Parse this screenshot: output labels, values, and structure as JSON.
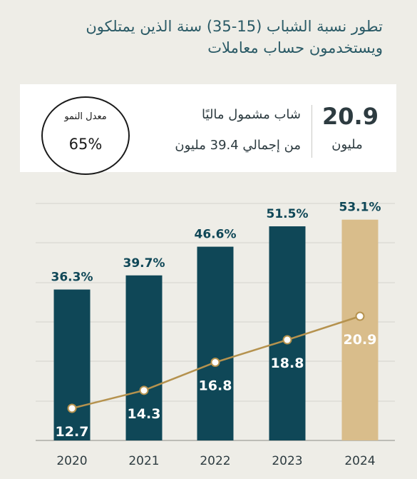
{
  "title": {
    "line1": "تطور نسبة الشباب (15-35) سنة الذين يمتلكون",
    "line2": "ويستخدمون حساب معاملات"
  },
  "stat_card": {
    "value": "20.9",
    "unit": "مليون",
    "line1": "شاب مشمول ماليًا",
    "line2": "من إجمالي 39.4 مليون"
  },
  "growth": {
    "label": "معدل النمو",
    "value": "65%"
  },
  "colors": {
    "bar": "#0f4757",
    "bar_highlight": "#d9bd8b",
    "line": "#b5924e",
    "pct_text": "#0f4757",
    "grid": "#d4d4ce"
  },
  "chart_data": {
    "type": "bar",
    "categories": [
      "2020",
      "2021",
      "2022",
      "2023",
      "2024"
    ],
    "series": [
      {
        "values": [
          36.3,
          39.7,
          46.6,
          51.5,
          53.1
        ],
        "labels": [
          "36.3%",
          "39.7%",
          "46.6%",
          "51.5%",
          "53.1%"
        ]
      },
      {
        "type": "line",
        "values": [
          12.7,
          14.3,
          16.8,
          18.8,
          20.9
        ],
        "labels": [
          "12.7",
          "14.3",
          "16.8",
          "18.8",
          "20.9"
        ]
      }
    ],
    "ylim": [
      0,
      57
    ],
    "grid": true,
    "highlight_category": "2024"
  }
}
